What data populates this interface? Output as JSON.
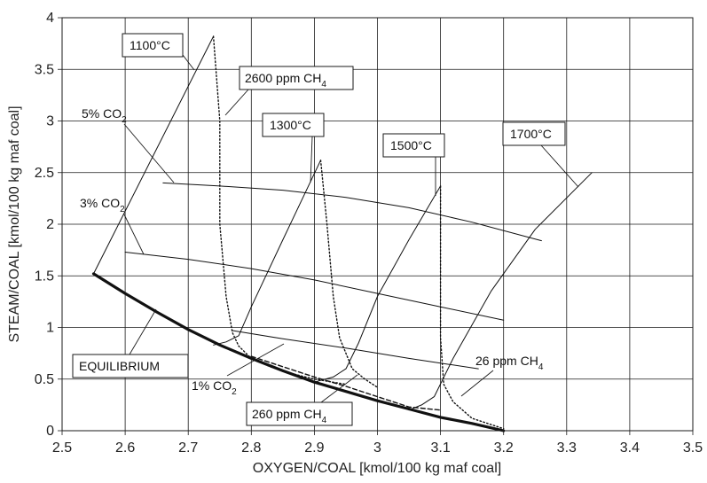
{
  "chart_data": {
    "type": "line",
    "xlabel": "OXYGEN/COAL [kmol/100 kg maf coal]",
    "ylabel": "STEAM/COAL [kmol/100 kg maf coal]",
    "xlim": [
      2.5,
      3.5
    ],
    "ylim": [
      0,
      4
    ],
    "xticks": [
      "2.5",
      "2.6",
      "2.7",
      "2.8",
      "2.9",
      "3",
      "3.1",
      "3.2",
      "3.3",
      "3.4",
      "3.5"
    ],
    "yticks": [
      "0",
      "0.5",
      "1",
      "1.5",
      "2",
      "2.5",
      "3",
      "3.5",
      "4"
    ],
    "grid": true,
    "series": [
      {
        "name": "EQUILIBRIUM",
        "style": "thick-solid",
        "x": [
          2.55,
          2.6,
          2.65,
          2.7,
          2.75,
          2.8,
          2.85,
          2.9,
          2.95,
          3.0,
          3.05,
          3.1,
          3.15,
          3.2
        ],
        "y": [
          1.52,
          1.33,
          1.15,
          0.98,
          0.83,
          0.7,
          0.58,
          0.47,
          0.38,
          0.29,
          0.21,
          0.13,
          0.07,
          0.0
        ]
      },
      {
        "name": "1100°C",
        "style": "solid",
        "x": [
          2.55,
          2.74
        ],
        "y": [
          1.52,
          3.82
        ]
      },
      {
        "name": "1300°C",
        "style": "solid",
        "x": [
          2.74,
          2.76,
          2.78,
          2.8,
          2.85,
          2.91
        ],
        "y": [
          0.83,
          0.86,
          0.92,
          1.2,
          1.85,
          2.62
        ]
      },
      {
        "name": "1500°C",
        "style": "solid",
        "x": [
          2.9,
          2.93,
          2.95,
          2.97,
          3.0,
          3.05,
          3.1
        ],
        "y": [
          0.47,
          0.52,
          0.6,
          0.85,
          1.3,
          1.85,
          2.37
        ]
      },
      {
        "name": "1700°C",
        "style": "solid",
        "x": [
          3.05,
          3.07,
          3.09,
          3.12,
          3.18,
          3.25,
          3.34
        ],
        "y": [
          0.2,
          0.25,
          0.33,
          0.7,
          1.35,
          1.95,
          2.5
        ]
      },
      {
        "name": "5% CO2",
        "style": "solid",
        "x": [
          2.66,
          2.75,
          2.85,
          2.95,
          3.05,
          3.15,
          3.26
        ],
        "y": [
          2.4,
          2.37,
          2.33,
          2.26,
          2.16,
          2.02,
          1.84
        ]
      },
      {
        "name": "3% CO2",
        "style": "solid",
        "x": [
          2.6,
          2.7,
          2.8,
          2.9,
          3.0,
          3.1,
          3.2
        ],
        "y": [
          1.73,
          1.66,
          1.57,
          1.46,
          1.33,
          1.2,
          1.07
        ]
      },
      {
        "name": "1% CO2",
        "style": "solid",
        "x": [
          2.77,
          2.85,
          2.95,
          3.05,
          3.16
        ],
        "y": [
          0.97,
          0.89,
          0.8,
          0.7,
          0.6
        ]
      },
      {
        "name": "2600 ppm CH4",
        "style": "dotted",
        "x": [
          2.74,
          2.75,
          2.75,
          2.76,
          2.77,
          2.78,
          2.8,
          2.83,
          2.86,
          2.9,
          2.95
        ],
        "y": [
          3.82,
          3.0,
          2.0,
          1.3,
          0.95,
          0.82,
          0.7,
          0.62,
          0.56,
          0.5,
          0.45
        ]
      },
      {
        "name": "1300°C-dotted",
        "style": "dotted",
        "x": [
          2.91,
          2.92,
          2.93,
          2.94,
          2.96,
          2.98,
          3.0
        ],
        "y": [
          2.62,
          2.0,
          1.3,
          0.9,
          0.6,
          0.5,
          0.42
        ]
      },
      {
        "name": "1500°C-dotted",
        "style": "dotted",
        "x": [
          3.1,
          3.1,
          3.1,
          3.105,
          3.12,
          3.15,
          3.2
        ],
        "y": [
          2.37,
          1.6,
          0.9,
          0.45,
          0.28,
          0.12,
          0.02
        ]
      },
      {
        "name": "260 ppm CH4",
        "style": "dashed",
        "x": [
          2.8,
          2.85,
          2.9,
          2.95,
          3.0,
          3.05,
          3.1
        ],
        "y": [
          0.72,
          0.62,
          0.52,
          0.43,
          0.33,
          0.23,
          0.2
        ]
      }
    ],
    "annotations": [
      {
        "text": "1100°C",
        "box": true
      },
      {
        "text": "2600 ppm CH",
        "sub": "4",
        "box": true
      },
      {
        "text": "5% CO",
        "sub": "2",
        "box": false
      },
      {
        "text": "1300°C",
        "box": true
      },
      {
        "text": "1500°C",
        "box": true
      },
      {
        "text": "1700°C",
        "box": true
      },
      {
        "text": "3% CO",
        "sub": "2",
        "box": false
      },
      {
        "text": "EQUILIBRIUM",
        "box": true
      },
      {
        "text": "1% CO",
        "sub": "2",
        "box": false
      },
      {
        "text": "260 ppm CH",
        "sub": "4",
        "box": true
      },
      {
        "text": "26 ppm CH",
        "sub": "4",
        "box": false
      }
    ]
  }
}
